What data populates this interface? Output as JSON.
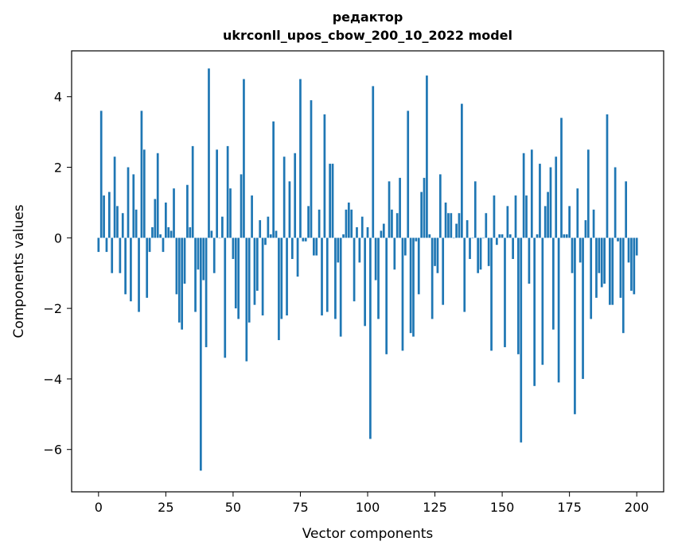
{
  "chart_data": {
    "type": "bar",
    "title_line1": "редактор",
    "title_line2": "ukrconll_upos_cbow_200_10_2022 model",
    "xlabel": "Vector components",
    "ylabel": "Components values",
    "xlim": [
      -10,
      210
    ],
    "ylim": [
      -7.2,
      5.3
    ],
    "xticks": [
      0,
      25,
      50,
      75,
      100,
      125,
      150,
      175,
      200
    ],
    "yticks": [
      -6,
      -4,
      -2,
      0,
      2,
      4
    ],
    "ytick_labels": [
      "−6",
      "−4",
      "−2",
      "0",
      "2",
      "4"
    ],
    "color": "#1f77b4",
    "values": [
      -0.4,
      3.6,
      1.2,
      -0.4,
      1.3,
      -1.0,
      2.3,
      0.9,
      -1.0,
      0.7,
      -1.6,
      2.0,
      -1.8,
      1.8,
      0.8,
      -2.1,
      3.6,
      2.5,
      -1.7,
      -0.4,
      0.3,
      1.1,
      2.4,
      0.1,
      -0.4,
      1.0,
      0.3,
      0.2,
      1.4,
      -1.6,
      -2.4,
      -2.6,
      -1.3,
      1.5,
      0.3,
      2.6,
      -2.1,
      -0.9,
      -6.6,
      -1.2,
      -3.1,
      4.8,
      0.2,
      -1.0,
      2.5,
      0.0,
      0.6,
      -3.4,
      2.6,
      1.4,
      -0.6,
      -2.0,
      -2.3,
      1.8,
      4.5,
      -3.5,
      -2.4,
      1.2,
      -1.9,
      -1.5,
      0.5,
      -2.2,
      -0.2,
      0.6,
      0.1,
      3.3,
      0.2,
      -2.9,
      -2.3,
      2.3,
      -2.2,
      1.6,
      -0.6,
      2.4,
      -1.1,
      4.5,
      -0.1,
      -0.1,
      0.9,
      3.9,
      -0.5,
      -0.5,
      0.8,
      -2.2,
      3.5,
      -2.1,
      2.1,
      2.1,
      -2.3,
      -0.7,
      -2.8,
      0.1,
      0.8,
      1.0,
      0.8,
      -1.8,
      0.3,
      -0.7,
      0.6,
      -2.5,
      0.3,
      -5.7,
      4.3,
      -1.2,
      -2.3,
      0.2,
      0.4,
      -3.3,
      1.6,
      0.8,
      -0.9,
      0.7,
      1.7,
      -3.2,
      -0.5,
      3.6,
      -2.7,
      -2.8,
      -0.1,
      -1.6,
      1.3,
      1.7,
      4.6,
      0.1,
      -2.3,
      -0.8,
      -1.0,
      1.8,
      -1.9,
      1.0,
      0.7,
      0.7,
      0.0,
      0.4,
      0.7,
      3.8,
      -2.1,
      0.5,
      -0.6,
      0.0,
      1.6,
      -1.0,
      -0.9,
      0.0,
      0.7,
      -0.8,
      -3.2,
      1.2,
      -0.2,
      0.1,
      0.1,
      -3.1,
      0.9,
      0.1,
      -0.6,
      1.2,
      -3.3,
      -5.8,
      2.4,
      1.2,
      -1.3,
      2.5,
      -4.2,
      0.1,
      2.1,
      -3.6,
      0.9,
      1.3,
      2.0,
      -2.6,
      2.3,
      -4.1,
      3.4,
      0.1,
      0.1,
      0.9,
      -1.0,
      -5.0,
      1.4,
      -0.7,
      -4.0,
      0.5,
      2.5,
      -2.3,
      0.8,
      -1.7,
      -1.0,
      -1.4,
      -1.3,
      3.5,
      -1.9,
      -1.9,
      2.0,
      -0.1,
      -1.7,
      -2.7,
      1.6,
      -0.7,
      -1.5,
      -1.6,
      -0.5
    ]
  }
}
